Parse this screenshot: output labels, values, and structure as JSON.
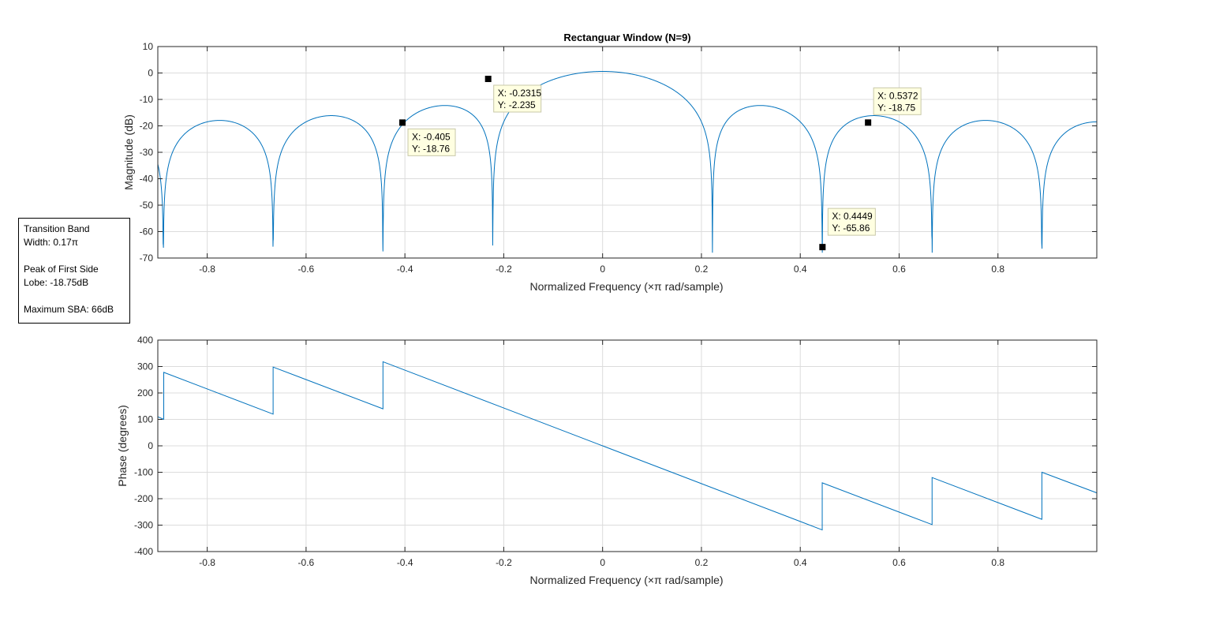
{
  "figure": {
    "title": "Rectanguar Window (N=9)"
  },
  "annotation": {
    "line1": "Transition Band",
    "line2": "Width: 0.17π",
    "line3": "Peak of First Side",
    "line4": "Lobe: -18.75dB",
    "line5": "Maximum SBA: 66dB"
  },
  "colors": {
    "line": "#0072BD",
    "grid": "#dcdcdc",
    "datatip_bg": "#ffffe1",
    "axis": "#262626"
  },
  "chart_data": [
    {
      "type": "line",
      "name": "magnitude",
      "title": "Rectanguar Window (N=9)",
      "xlabel": "Normalized Frequency  (×π rad/sample)",
      "ylabel": "Magnitude (dB)",
      "xlim": [
        -0.9,
        1.0
      ],
      "ylim": [
        -70,
        10
      ],
      "xticks": [
        -0.8,
        -0.6,
        -0.4,
        -0.2,
        0,
        0.2,
        0.4,
        0.6,
        0.8
      ],
      "xtick_labels": [
        "-0.8",
        "-0.6",
        "-0.4",
        "-0.2",
        "0",
        "0.2",
        "0.4",
        "0.6",
        "0.8"
      ],
      "yticks": [
        10,
        0,
        -10,
        -20,
        -30,
        -40,
        -50,
        -60,
        -70
      ],
      "ytick_labels": [
        "10",
        "0",
        "-10",
        "-20",
        "-30",
        "-40",
        "-50",
        "-60",
        "-70"
      ],
      "grid": true,
      "series": [
        {
          "name": "Magnitude",
          "function": "20*log10(|sin(9*pi*w/2)/sin(pi*w/2)|/9)+0.6"
        }
      ],
      "datatips": [
        {
          "x": -0.405,
          "y": -18.76,
          "xlabel": "X: -0.405",
          "ylabel": "Y: -18.76",
          "box": "right-below"
        },
        {
          "x": -0.2315,
          "y": -2.235,
          "xlabel": "X: -0.2315",
          "ylabel": "Y: -2.235",
          "box": "right-below"
        },
        {
          "x": 0.5372,
          "y": -18.75,
          "xlabel": "X: 0.5372",
          "ylabel": "Y: -18.75",
          "box": "right-above"
        },
        {
          "x": 0.4449,
          "y": -65.86,
          "xlabel": "X: 0.4449",
          "ylabel": "Y: -65.86",
          "box": "right-above"
        }
      ]
    },
    {
      "type": "line",
      "name": "phase",
      "title": "",
      "xlabel": "Normalized Frequency  (×π rad/sample)",
      "ylabel": "Phase (degrees)",
      "xlim": [
        -0.9,
        1.0
      ],
      "ylim": [
        -400,
        400
      ],
      "xticks": [
        -0.8,
        -0.6,
        -0.4,
        -0.2,
        0,
        0.2,
        0.4,
        0.6,
        0.8
      ],
      "xtick_labels": [
        "-0.8",
        "-0.6",
        "-0.4",
        "-0.2",
        "0",
        "0.2",
        "0.4",
        "0.6",
        "0.8"
      ],
      "yticks": [
        400,
        300,
        200,
        100,
        0,
        -100,
        -200,
        -300,
        -400
      ],
      "ytick_labels": [
        "400",
        "300",
        "200",
        "100",
        "0",
        "-100",
        "-200",
        "-300",
        "-400"
      ],
      "grid": true,
      "series": [
        {
          "name": "Phase",
          "x": [
            -0.9,
            -0.888,
            -0.888,
            -0.6667,
            -0.6667,
            -0.4444,
            -0.4444,
            0,
            0.4444,
            0.4444,
            0.6667,
            0.6667,
            0.8889,
            0.8889,
            1.0
          ],
          "y": [
            110,
            100,
            278,
            120,
            298,
            140,
            318,
            0,
            -318,
            -140,
            -298,
            -120,
            -278,
            -100,
            -178
          ]
        }
      ]
    }
  ]
}
